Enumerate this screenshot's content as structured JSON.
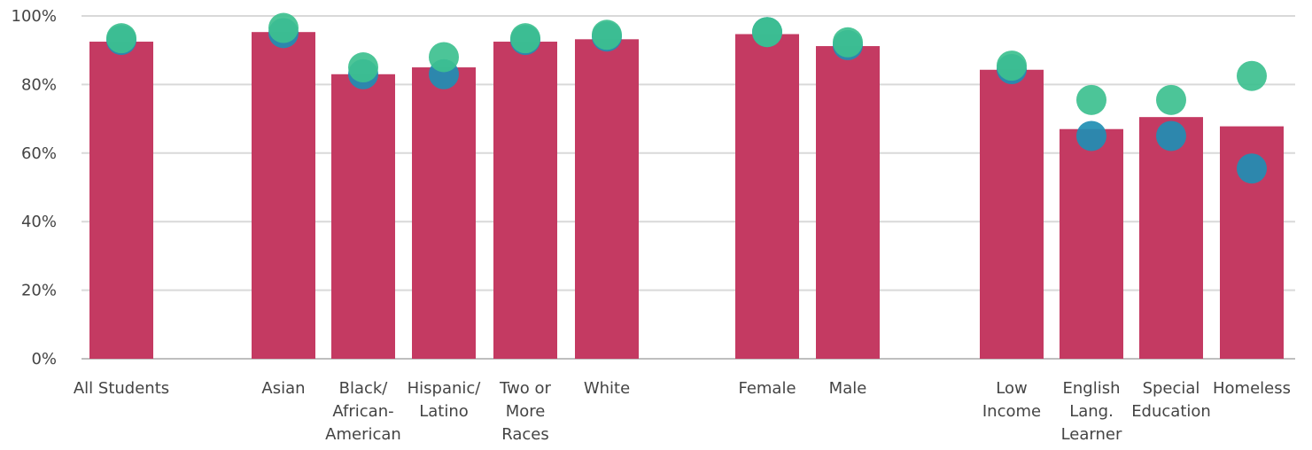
{
  "chart_data": {
    "type": "bar",
    "title": "",
    "xlabel": "",
    "ylabel": "",
    "ylim": [
      0,
      100
    ],
    "y_ticks": [
      "0%",
      "20%",
      "40%",
      "60%",
      "80%",
      "100%"
    ],
    "grid": true,
    "legend": "none",
    "colors": {
      "bar": "#c43a62",
      "dot_blue": "#1f8eb3",
      "dot_green": "#3dc08f"
    },
    "categories": [
      {
        "lines": [
          "All Students"
        ],
        "group": 0
      },
      {
        "lines": [
          "Asian"
        ],
        "group": 1
      },
      {
        "lines": [
          "Black/",
          "African-",
          "American"
        ],
        "group": 1
      },
      {
        "lines": [
          "Hispanic/",
          "Latino"
        ],
        "group": 1
      },
      {
        "lines": [
          "Two or",
          "More",
          "Races"
        ],
        "group": 1
      },
      {
        "lines": [
          "White"
        ],
        "group": 1
      },
      {
        "lines": [
          "Female"
        ],
        "group": 2
      },
      {
        "lines": [
          "Male"
        ],
        "group": 2
      },
      {
        "lines": [
          "Low",
          "Income"
        ],
        "group": 3
      },
      {
        "lines": [
          "English",
          "Lang.",
          "Learner"
        ],
        "group": 3
      },
      {
        "lines": [
          "Special",
          "Education"
        ],
        "group": 3
      },
      {
        "lines": [
          "Homeless"
        ],
        "group": 3
      }
    ],
    "series": [
      {
        "type": "bar",
        "color": "#c43a62",
        "values": [
          92.5,
          95.3,
          83.0,
          85.0,
          92.5,
          93.2,
          94.7,
          91.2,
          84.3,
          67.0,
          70.5,
          67.8
        ]
      },
      {
        "type": "dot",
        "color": "#1f8eb3",
        "values": [
          93.0,
          95.0,
          83.0,
          83.0,
          93.0,
          94.0,
          95.3,
          91.5,
          84.5,
          65.0,
          65.0,
          55.5
        ]
      },
      {
        "type": "dot",
        "color": "#3dc08f",
        "values": [
          93.5,
          96.5,
          85.0,
          88.0,
          93.5,
          94.5,
          95.3,
          92.3,
          85.5,
          75.5,
          75.5,
          82.5
        ]
      }
    ]
  }
}
